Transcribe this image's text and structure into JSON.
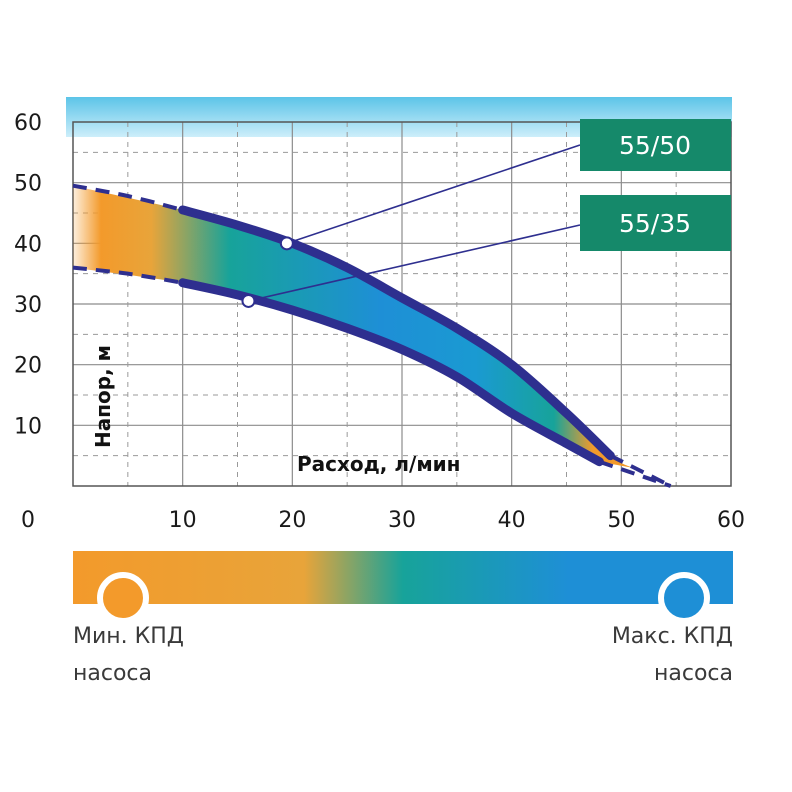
{
  "chart_data": {
    "type": "line",
    "x_ticks": [
      "0",
      "10",
      "20",
      "30",
      "40",
      "50",
      "60"
    ],
    "y_ticks": [
      "10",
      "20",
      "30",
      "40",
      "50",
      "60"
    ],
    "xlabel": "Расход, л/мин",
    "ylabel": "Напор, м",
    "xlim": [
      0,
      60
    ],
    "ylim": [
      0,
      60
    ],
    "grid": true,
    "series": [
      {
        "name": "55/50",
        "x": [
          10,
          15,
          20,
          25,
          30,
          35,
          40,
          45,
          49
        ],
        "y": [
          45.5,
          43,
          40,
          36,
          31,
          26,
          20,
          12,
          5
        ],
        "marker": {
          "x": 19.5,
          "y": 40
        }
      },
      {
        "name": "55/35",
        "x": [
          10,
          15,
          20,
          25,
          30,
          35,
          40,
          45,
          48
        ],
        "y": [
          33.5,
          31.5,
          29,
          26,
          22.5,
          18,
          12,
          7,
          4
        ],
        "marker": {
          "x": 16,
          "y": 30.5
        }
      }
    ],
    "extrapolation": {
      "upper_start": {
        "x": 0,
        "y": 49.5
      },
      "lower_start": {
        "x": 0,
        "y": 36
      },
      "end": {
        "x": 54.5,
        "y": 0
      }
    },
    "efficiency_gradient": [
      "#f39a2b",
      "#e8a43a",
      "#17a39a",
      "#1e8fd6",
      "#1e8fd6"
    ]
  },
  "legend": {
    "min_label": "Мин. КПД",
    "min_sub": "насоса",
    "max_label": "Макс. КПД",
    "max_sub": "насоса",
    "min_color": "#f39a2b",
    "max_color": "#1e8fd6"
  },
  "colors": {
    "curve": "#2e2f8f",
    "box_fill": "#15896a",
    "top_band_fill": "#5cc4e8",
    "grid": "#9a9a9a",
    "frame": "#555555"
  }
}
